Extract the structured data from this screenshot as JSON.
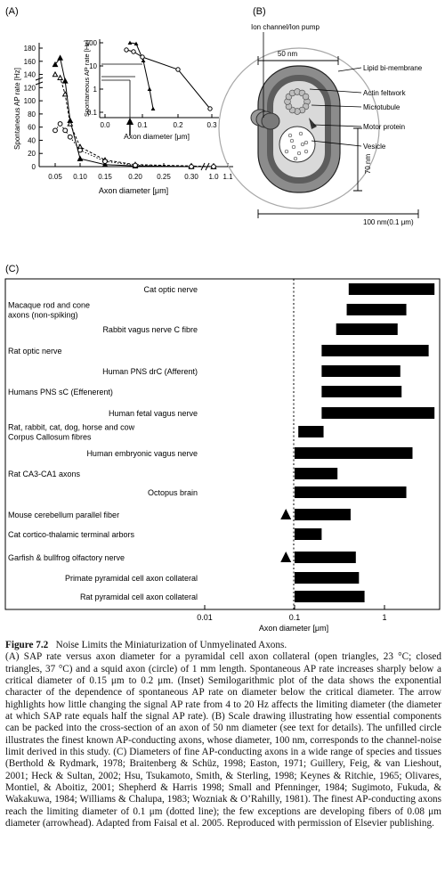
{
  "panel_a": {
    "label": "(A)",
    "ylabel": "Spontaneous AP rate [Hz]",
    "xlabel": "Axon diameter [μm]",
    "yticks": [
      "180",
      "160",
      "140",
      "120",
      "100",
      "80",
      "60",
      "40",
      "20",
      "0"
    ],
    "xticks": [
      "0.05",
      "0.10",
      "0.15",
      "0.20",
      "0.25",
      "0.30",
      "1.0",
      "1.1"
    ],
    "y_break_label": "140",
    "inset": {
      "ylabel": "Spontaneous AP rate [Hz]",
      "xlabel": "Axon diameter [μm]",
      "yticks": [
        "100",
        "10",
        "1",
        "0.1"
      ],
      "xticks": [
        "0.0",
        "0.1",
        "0.2",
        "0.3"
      ]
    }
  },
  "panel_b": {
    "label": "(B)",
    "labels": [
      "Ion channel/Ion pump",
      "50 nm",
      "Lipid bi-membrane",
      "Actin feltwork",
      "Microtubule",
      "Motor protein",
      "Vesicle",
      "70 nm",
      "100 nm(0.1 μm)"
    ]
  },
  "panel_c": {
    "label": "(C)",
    "xlabel": "Axon diameter [μm]",
    "xticks": [
      "0.01",
      "0.1",
      "1"
    ],
    "rows": [
      {
        "label": "Cat optic nerve",
        "lo": 0.4,
        "hi": 3.6,
        "arrow": false
      },
      {
        "label": "Macaque rod and cone\naxons (non-spiking)",
        "lo": 0.38,
        "hi": 1.75,
        "arrow": false
      },
      {
        "label": "Rabbit vagus nerve C fibre",
        "lo": 0.29,
        "hi": 1.4,
        "arrow": false
      },
      {
        "label": "Rat optic nerve",
        "lo": 0.2,
        "hi": 3.1,
        "arrow": false
      },
      {
        "label": "Human PNS drC (Afferent)",
        "lo": 0.2,
        "hi": 1.5,
        "arrow": false
      },
      {
        "label": "Humans PNS sC (Effenerent)",
        "lo": 0.2,
        "hi": 1.55,
        "arrow": false
      },
      {
        "label": "Human fetal vagus nerve",
        "lo": 0.2,
        "hi": 3.6,
        "arrow": false
      },
      {
        "label": "Rat, rabbit, cat, dog, horse and cow\nCorpus Callosum fibres",
        "lo": 0.11,
        "hi": 0.21,
        "arrow": false
      },
      {
        "label": "Human embryonic vagus nerve",
        "lo": 0.1,
        "hi": 2.05,
        "arrow": false
      },
      {
        "label": "Rat CA3-CA1 axons",
        "lo": 0.1,
        "hi": 0.3,
        "arrow": false
      },
      {
        "label": "Octopus brain",
        "lo": 0.1,
        "hi": 1.75,
        "arrow": false
      },
      {
        "label": "Mouse cerebellum parallel fiber",
        "lo": 0.1,
        "hi": 0.42,
        "arrow": true
      },
      {
        "label": "Cat cortico-thalamic terminal arbors",
        "lo": 0.1,
        "hi": 0.2,
        "arrow": false
      },
      {
        "label": "Garfish & bullfrog olfactory nerve",
        "lo": 0.1,
        "hi": 0.48,
        "arrow": true
      },
      {
        "label": "Primate pyramidal cell axon collateral",
        "lo": 0.1,
        "hi": 0.52,
        "arrow": false
      },
      {
        "label": "Rat pyramidal cell axon collateral",
        "lo": 0.1,
        "hi": 0.6,
        "arrow": false
      }
    ]
  },
  "chart_data": [
    {
      "type": "line",
      "title": "",
      "xlabel": "Axon diameter [μm]",
      "ylabel": "Spontaneous AP rate [Hz]",
      "ylim": [
        0,
        180
      ],
      "series": [
        {
          "x": [
            0.05,
            0.06,
            0.07,
            0.08,
            0.1,
            0.15,
            0.2,
            0.3,
            1.0
          ],
          "y": [
            155,
            165,
            130,
            70,
            12,
            3,
            1,
            0,
            0
          ]
        },
        {
          "x": [
            0.05,
            0.06,
            0.07,
            0.08,
            0.1,
            0.15,
            0.2,
            0.3,
            1.0
          ],
          "y": [
            140,
            135,
            110,
            65,
            30,
            10,
            3,
            1,
            0
          ]
        },
        {
          "x": [
            0.05,
            0.06,
            0.07,
            0.08,
            0.1,
            0.15,
            0.2,
            0.3,
            1.0
          ],
          "y": [
            55,
            65,
            55,
            45,
            25,
            8,
            2,
            0,
            0
          ]
        }
      ]
    },
    {
      "type": "bar",
      "title": "",
      "xlabel": "Axon diameter [μm]",
      "xscale": "log",
      "xlim": [
        0.01,
        4
      ],
      "reference_line": 0.1
    }
  ],
  "caption": {
    "fig_no": "Figure 7.2",
    "title": "Noise Limits the Miniaturization of Unmyelinated Axons.",
    "body": "(A) SAP rate versus axon diameter for a pyramidal cell axon collateral (open triangles, 23 °C; closed triangles, 37 °C) and a squid axon (circle) of 1 mm length. Spontaneous AP rate increases sharply below a critical diameter of 0.15 μm to 0.2 μm. (Inset) Semilogarithmic plot of the data shows the exponential character of the dependence of spontaneous AP rate on diameter below the critical diameter. The arrow highlights how little changing the signal AP rate from 4 to 20 Hz affects the limiting diameter (the diameter at which SAP rate equals half the signal AP rate). (B) Scale drawing illustrating how essential components can be packed into the cross-section of an axon of 50 nm diameter (see text for details). The unfilled circle illustrates the finest known AP-conducting axons, whose diameter, 100 nm, corresponds to the channel-noise limit derived in this study. (C) Diameters of fine AP-conducting axons in a wide range of species and tissues (Berthold & Rydmark, 1978; Braitenberg & Schüz, 1998; Easton, 1971; Guillery, Feig, & van Lieshout, 2001; Heck & Sultan, 2002; Hsu, Tsukamoto, Smith, & Sterling, 1998; Keynes & Ritchie, 1965; Olivares, Montiel, & Aboitiz, 2001; Shepherd & Harris 1998; Small and Pfenninger, 1984; Sugimoto, Fukuda, & Wakakuwa, 1984; Williams & Chalupa, 1983; Wozniak & O’Rahilly, 1981). The finest AP-conducting axons reach the limiting diameter of 0.1 μm (dotted line); the few exceptions are developing fibers of 0.08 μm diameter (arrowhead). Adapted from Faisal et al. 2005. Reproduced with permission of Elsevier publishing."
  }
}
